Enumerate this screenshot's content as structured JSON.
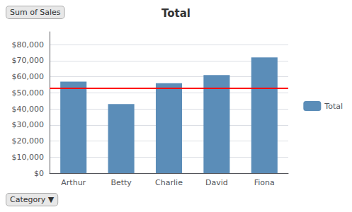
{
  "chart_data": {
    "type": "bar",
    "title": "Total",
    "categories": [
      "Arthur",
      "Betty",
      "Charlie",
      "David",
      "Fiona"
    ],
    "series": [
      {
        "name": "Total",
        "color": "#5b8db8",
        "values": [
          57000,
          43000,
          56000,
          61000,
          72000
        ]
      }
    ],
    "hline": {
      "value": 53000,
      "color": "#ff0000"
    },
    "ylim": [
      0,
      88000
    ],
    "yticks": [
      {
        "value": 0,
        "label": "$0"
      },
      {
        "value": 10000,
        "label": "$10,000"
      },
      {
        "value": 20000,
        "label": "$20,000"
      },
      {
        "value": 30000,
        "label": "$30,000"
      },
      {
        "value": 40000,
        "label": "$40,000"
      },
      {
        "value": 50000,
        "label": "$50,000"
      },
      {
        "value": 60000,
        "label": "$60,000"
      },
      {
        "value": 70000,
        "label": "$70,000"
      },
      {
        "value": 80000,
        "label": "$80,000"
      }
    ],
    "grid": true,
    "legend": "right",
    "annotations": [
      "Sum of Sales",
      "Category ▼"
    ]
  }
}
